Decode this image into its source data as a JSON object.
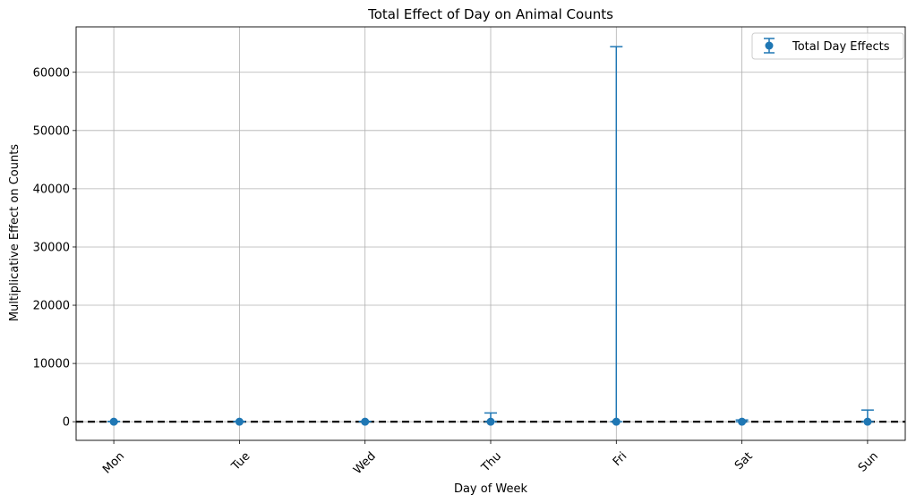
{
  "chart_data": {
    "type": "errorbar",
    "title": "Total Effect of Day on Animal Counts",
    "xlabel": "Day of Week",
    "ylabel": "Multiplicative Effect on Counts",
    "categories": [
      "Mon",
      "Tue",
      "Wed",
      "Thu",
      "Fri",
      "Sat",
      "Sun"
    ],
    "series": [
      {
        "name": "Total Day Effects",
        "color": "#1f77b4",
        "values": [
          1,
          1,
          1,
          1,
          1,
          1,
          1
        ],
        "err_upper": [
          50,
          50,
          60,
          1500,
          64400,
          300,
          2000
        ],
        "err_lower": [
          1,
          1,
          1,
          1,
          1,
          1,
          1
        ]
      }
    ],
    "ylim": [
      -3200,
      67800
    ],
    "yticks": [
      0,
      10000,
      20000,
      30000,
      40000,
      50000,
      60000
    ],
    "ytick_labels": [
      "0",
      "10000",
      "20000",
      "30000",
      "40000",
      "50000",
      "60000"
    ],
    "reference_line": {
      "y": 0,
      "style": "dashed",
      "color": "#000000"
    },
    "grid": true,
    "legend_position": "top-right"
  }
}
